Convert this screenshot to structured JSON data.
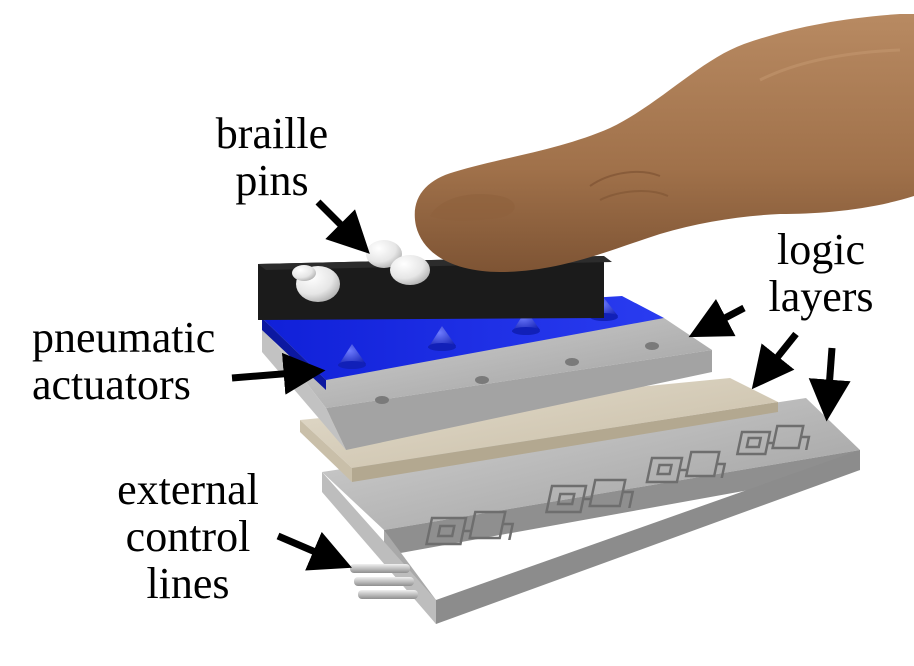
{
  "labels": {
    "braille_pins": "braille\npins",
    "pneumatic_actuators": "pneumatic\nactuators",
    "logic_layers": "logic\nlayers",
    "external_control_lines": "external\ncontrol\nlines"
  },
  "colors": {
    "braille_layer": "#1c1c1c",
    "actuator_layer": "#1a2fd8",
    "logic_layer_gray": "#b7b7b7",
    "logic_layer_beige": "#d6ccb8",
    "finger": "#a57751",
    "pins": "#f2f2f2",
    "arrows": "#000000"
  }
}
